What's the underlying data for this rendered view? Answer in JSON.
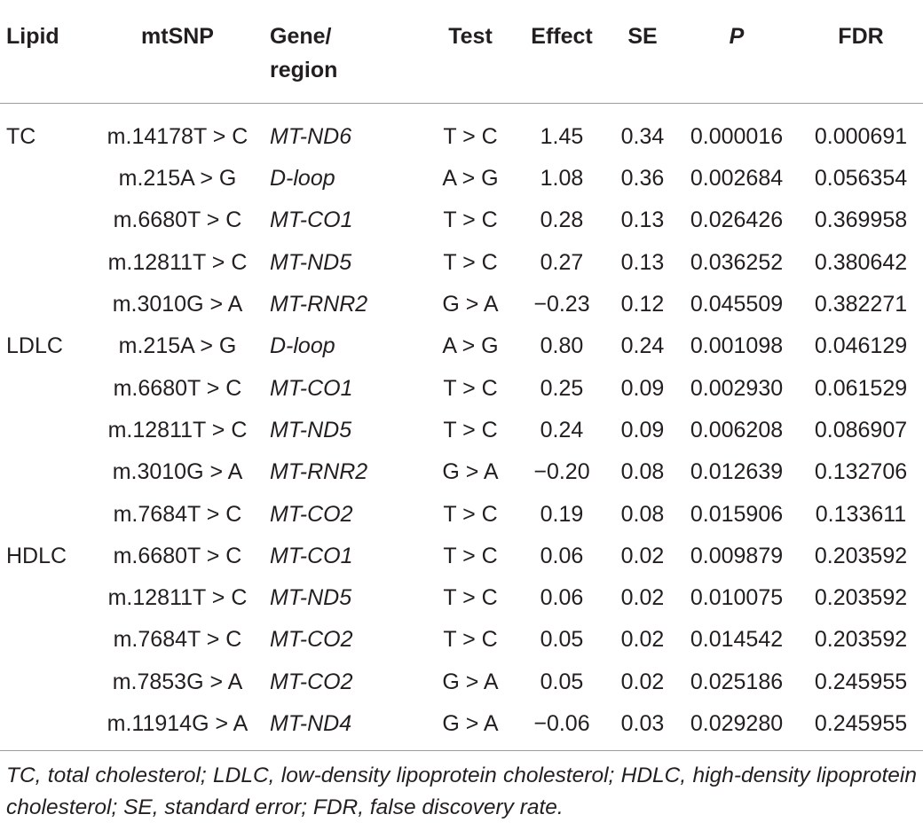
{
  "columns": [
    "Lipid",
    "mtSNP",
    "Gene/ region",
    "Test",
    "Effect",
    "SE",
    "P",
    "FDR"
  ],
  "header": {
    "lipid": "Lipid",
    "mtsnp": "mtSNP",
    "gene_line1": "Gene/",
    "gene_line2": "region",
    "test": "Test",
    "effect": "Effect",
    "se": "SE",
    "p": "P",
    "fdr": "FDR"
  },
  "rows": [
    {
      "lipid": "TC",
      "mtsnp": "m.14178T > C",
      "gene": "MT-ND6",
      "test": "T > C",
      "effect": "1.45",
      "se": "0.34",
      "p": "0.000016",
      "fdr": "0.000691"
    },
    {
      "lipid": "",
      "mtsnp": "m.215A > G",
      "gene": "D-loop",
      "test": "A > G",
      "effect": "1.08",
      "se": "0.36",
      "p": "0.002684",
      "fdr": "0.056354"
    },
    {
      "lipid": "",
      "mtsnp": "m.6680T > C",
      "gene": "MT-CO1",
      "test": "T > C",
      "effect": "0.28",
      "se": "0.13",
      "p": "0.026426",
      "fdr": "0.369958"
    },
    {
      "lipid": "",
      "mtsnp": "m.12811T > C",
      "gene": "MT-ND5",
      "test": "T > C",
      "effect": "0.27",
      "se": "0.13",
      "p": "0.036252",
      "fdr": "0.380642"
    },
    {
      "lipid": "",
      "mtsnp": "m.3010G > A",
      "gene": "MT-RNR2",
      "test": "G > A",
      "effect": "−0.23",
      "se": "0.12",
      "p": "0.045509",
      "fdr": "0.382271"
    },
    {
      "lipid": "LDLC",
      "mtsnp": "m.215A > G",
      "gene": "D-loop",
      "test": "A > G",
      "effect": "0.80",
      "se": "0.24",
      "p": "0.001098",
      "fdr": "0.046129"
    },
    {
      "lipid": "",
      "mtsnp": "m.6680T > C",
      "gene": "MT-CO1",
      "test": "T > C",
      "effect": "0.25",
      "se": "0.09",
      "p": "0.002930",
      "fdr": "0.061529"
    },
    {
      "lipid": "",
      "mtsnp": "m.12811T > C",
      "gene": "MT-ND5",
      "test": "T > C",
      "effect": "0.24",
      "se": "0.09",
      "p": "0.006208",
      "fdr": "0.086907"
    },
    {
      "lipid": "",
      "mtsnp": "m.3010G > A",
      "gene": "MT-RNR2",
      "test": "G > A",
      "effect": "−0.20",
      "se": "0.08",
      "p": "0.012639",
      "fdr": "0.132706"
    },
    {
      "lipid": "",
      "mtsnp": "m.7684T > C",
      "gene": "MT-CO2",
      "test": "T > C",
      "effect": "0.19",
      "se": "0.08",
      "p": "0.015906",
      "fdr": "0.133611"
    },
    {
      "lipid": "HDLC",
      "mtsnp": "m.6680T > C",
      "gene": "MT-CO1",
      "test": "T > C",
      "effect": "0.06",
      "se": "0.02",
      "p": "0.009879",
      "fdr": "0.203592"
    },
    {
      "lipid": "",
      "mtsnp": "m.12811T > C",
      "gene": "MT-ND5",
      "test": "T > C",
      "effect": "0.06",
      "se": "0.02",
      "p": "0.010075",
      "fdr": "0.203592"
    },
    {
      "lipid": "",
      "mtsnp": "m.7684T > C",
      "gene": "MT-CO2",
      "test": "T > C",
      "effect": "0.05",
      "se": "0.02",
      "p": "0.014542",
      "fdr": "0.203592"
    },
    {
      "lipid": "",
      "mtsnp": "m.7853G > A",
      "gene": "MT-CO2",
      "test": "G > A",
      "effect": "0.05",
      "se": "0.02",
      "p": "0.025186",
      "fdr": "0.245955"
    },
    {
      "lipid": "",
      "mtsnp": "m.11914G > A",
      "gene": "MT-ND4",
      "test": "G > A",
      "effect": "−0.06",
      "se": "0.03",
      "p": "0.029280",
      "fdr": "0.245955"
    }
  ],
  "footnote": "TC, total cholesterol; LDLC, low-density lipoprotein cholesterol; HDLC, high-density lipoprotein cholesterol; SE, standard error; FDR, false discovery rate."
}
